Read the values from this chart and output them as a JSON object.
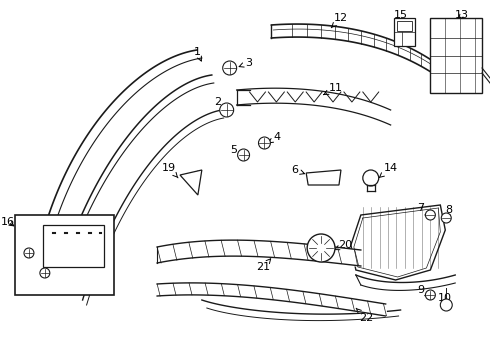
{
  "bg_color": "#ffffff",
  "line_color": "#1a1a1a",
  "text_color": "#000000",
  "fig_width": 4.9,
  "fig_height": 3.6,
  "dpi": 100
}
